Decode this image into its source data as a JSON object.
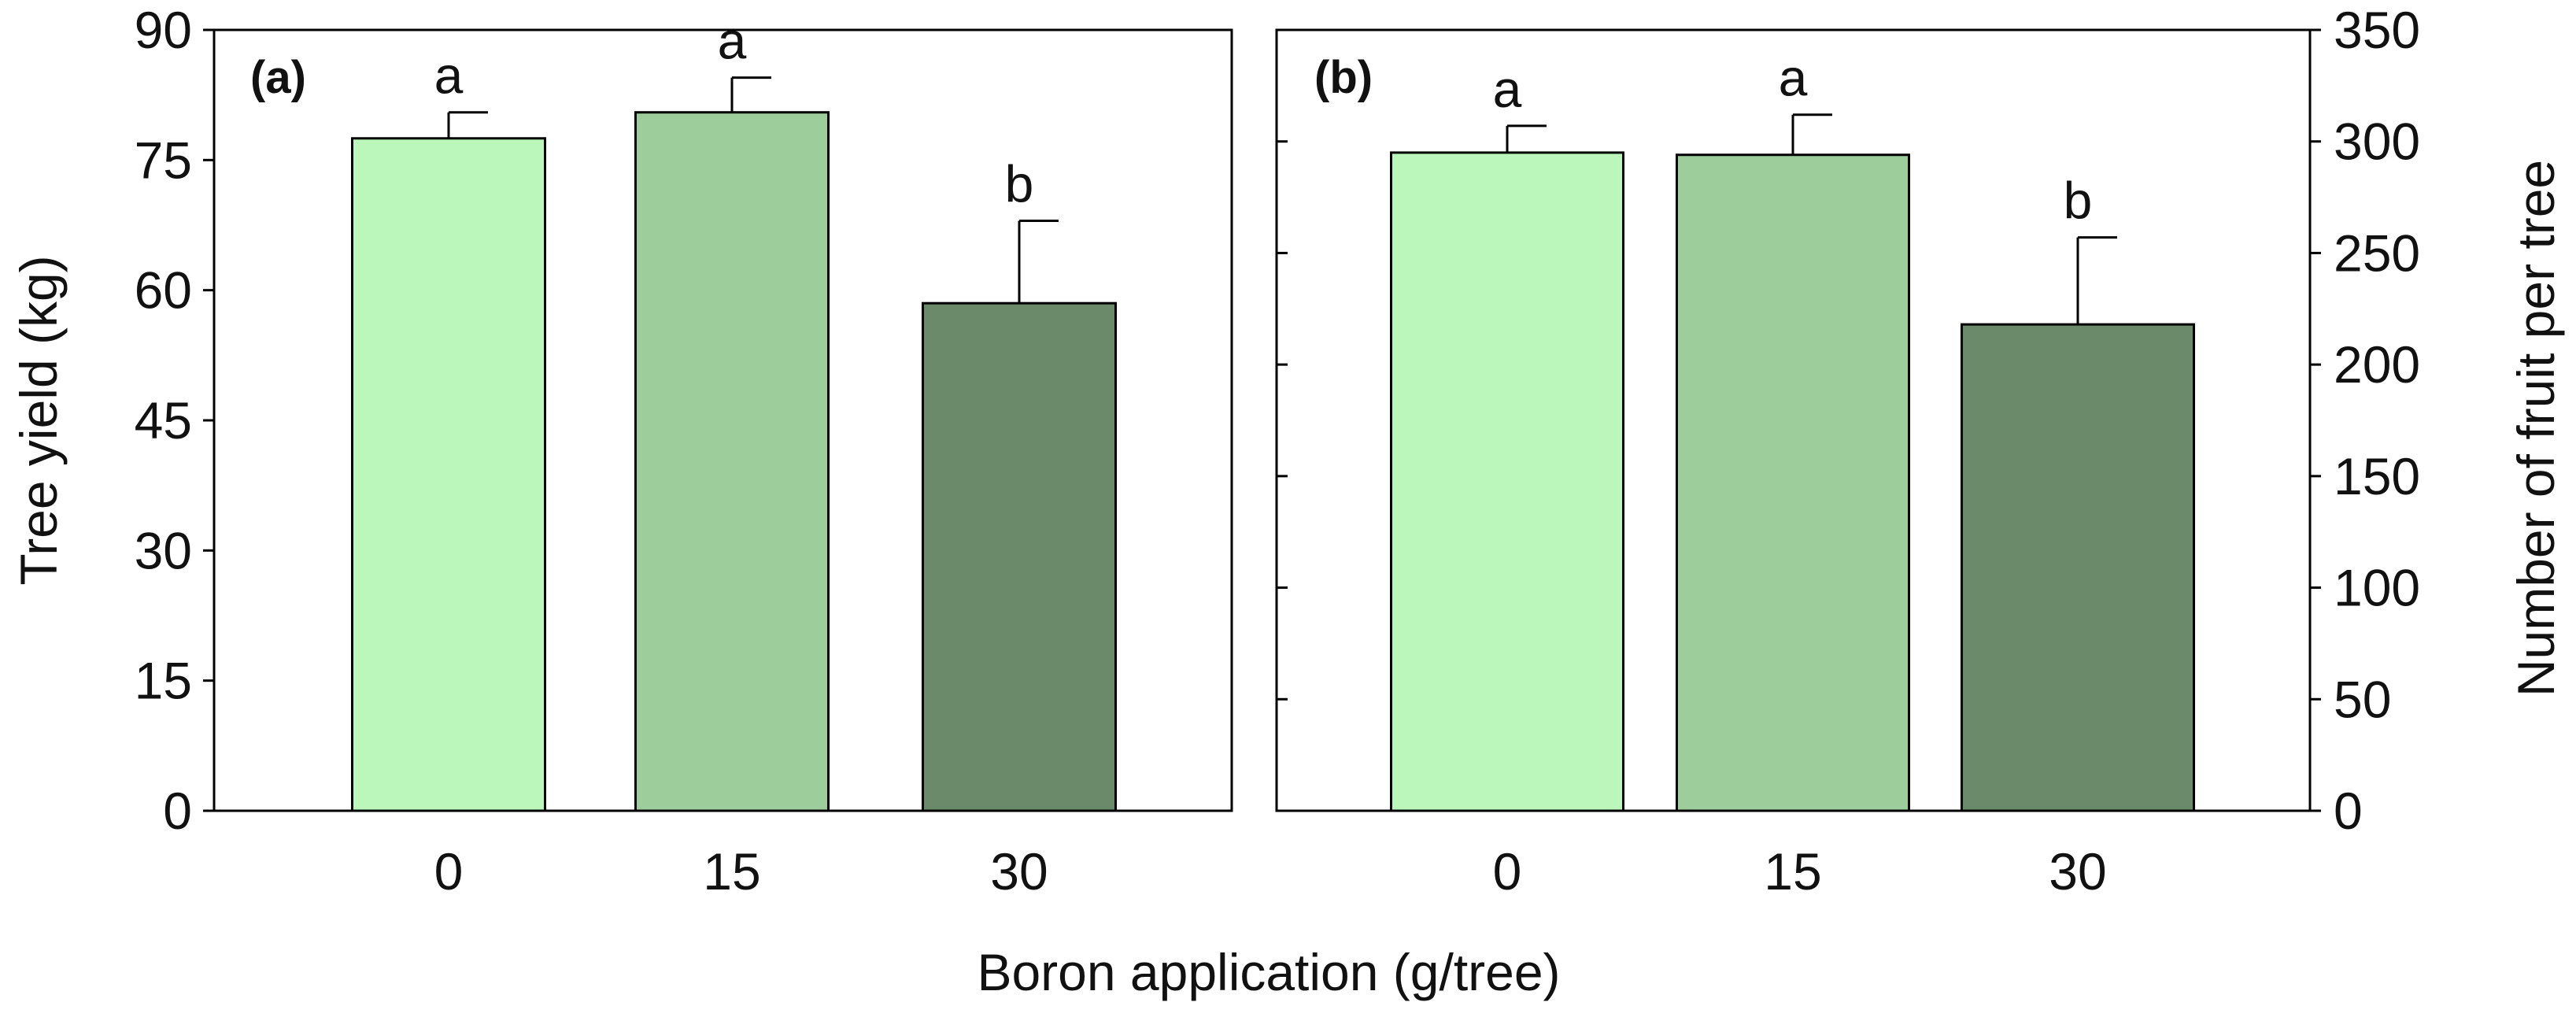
{
  "figure": {
    "shared_xlabel": "Boron application (g/tree)"
  },
  "colors": {
    "bar_0": "#bbf7bb",
    "bar_15": "#9dcd9b",
    "bar_30": "#6a8a6a",
    "stroke": "#000000"
  },
  "chart_data": [
    {
      "type": "bar",
      "panel_label": "(a)",
      "categories": [
        "0",
        "15",
        "30"
      ],
      "values": [
        77.5,
        80.5,
        58.5
      ],
      "errors": [
        3.0,
        4.0,
        9.5
      ],
      "significance": [
        "a",
        "a",
        "b"
      ],
      "ylabel": "Tree yield (kg)",
      "ylim": [
        0,
        90
      ],
      "yticks": [
        0,
        15,
        30,
        45,
        60,
        75,
        90
      ],
      "y_axis_side": "left",
      "grid": false
    },
    {
      "type": "bar",
      "panel_label": "(b)",
      "categories": [
        "0",
        "15",
        "30"
      ],
      "values": [
        295,
        294,
        218
      ],
      "errors": [
        12,
        18,
        39
      ],
      "significance": [
        "a",
        "a",
        "b"
      ],
      "ylabel": "Number of fruit per tree",
      "ylim": [
        0,
        350
      ],
      "yticks": [
        0,
        50,
        100,
        150,
        200,
        250,
        300,
        350
      ],
      "y_axis_side": "right",
      "grid": false
    }
  ]
}
